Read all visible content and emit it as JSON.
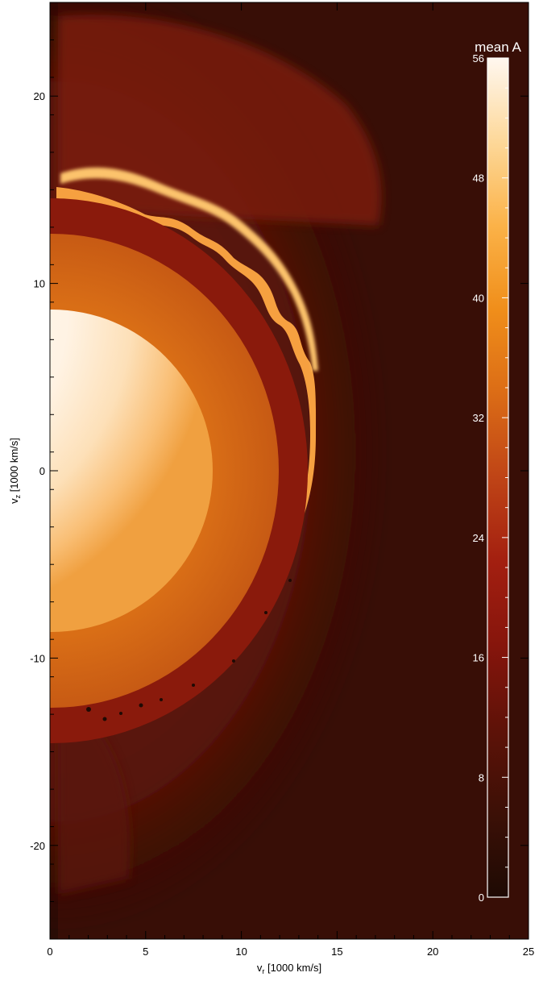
{
  "chart_data": {
    "type": "heatmap",
    "title": "",
    "xlabel_main": "v",
    "xlabel_sub": "r",
    "xlabel_rest": " [1000 km/s]",
    "ylabel_main": "v",
    "ylabel_sub": "z",
    "ylabel_rest": " [1000 km/s]",
    "xlim": [
      0,
      25
    ],
    "ylim": [
      -25,
      25
    ],
    "x_ticks": [
      0,
      5,
      10,
      15,
      20,
      25
    ],
    "x_tick_labels": [
      "0",
      "5",
      "10",
      "15",
      "20",
      "25"
    ],
    "y_ticks": [
      -20,
      -10,
      0,
      10,
      20
    ],
    "y_tick_labels": [
      "-20",
      "-10",
      "0",
      "10",
      "20"
    ],
    "colorbar": {
      "label": "mean A",
      "range": [
        0,
        56
      ],
      "ticks": [
        0,
        8,
        16,
        24,
        32,
        40,
        48,
        56
      ],
      "tick_labels": [
        "0",
        "8",
        "16",
        "24",
        "32",
        "40",
        "48",
        "56"
      ],
      "colormap": [
        "#1e0a04",
        "#3c1006",
        "#5e1208",
        "#86150c",
        "#a31f10",
        "#bf4416",
        "#db6c16",
        "#f08e1a",
        "#fbb248",
        "#fdd899",
        "#fff7ef"
      ]
    },
    "features": {
      "core_center": [
        0,
        -1
      ],
      "core_radius": 8,
      "inner_shell_radius": 12.5,
      "mixing_front_radius": 14
    },
    "background_color": "#380e06"
  }
}
